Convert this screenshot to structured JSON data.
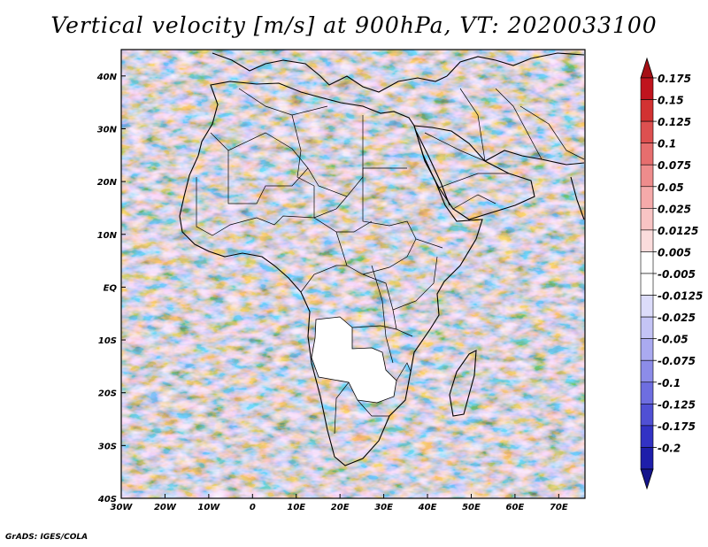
{
  "title": "Vertical velocity [m/s] at 900hPa, VT: 2020033100",
  "credit": "GrADS: IGES/COLA",
  "map": {
    "lon_ticks": [
      "30W",
      "20W",
      "10W",
      "0",
      "10E",
      "20E",
      "30E",
      "40E",
      "50E",
      "60E",
      "70E"
    ],
    "lat_ticks": [
      "40N",
      "30N",
      "20N",
      "10N",
      "EQ",
      "10S",
      "20S",
      "30S",
      "40S"
    ],
    "extent": {
      "lon_min": -30,
      "lon_max": 76,
      "lat_min": -40,
      "lat_max": 45
    }
  },
  "colorbar": {
    "labels": [
      "0.175",
      "0.15",
      "0.125",
      "0.1",
      "0.075",
      "0.05",
      "0.025",
      "0.0125",
      "0.005",
      "-0.005",
      "-0.0125",
      "-0.025",
      "-0.05",
      "-0.075",
      "-0.1",
      "-0.125",
      "-0.175",
      "-0.2"
    ],
    "colors": [
      "#c0141e",
      "#d23232",
      "#dd5050",
      "#e66e6e",
      "#ee8c8c",
      "#f5aaaa",
      "#f8c4c4",
      "#fbdcdc",
      "#ffffff",
      "#ffffff",
      "#dcdcfa",
      "#c4c4f5",
      "#aaaaf0",
      "#8c8ce8",
      "#6e6ee0",
      "#5050d4",
      "#3232c4",
      "#1e1eaa"
    ],
    "top_arrow_color": "#a50f15",
    "bottom_arrow_color": "#14148c"
  }
}
